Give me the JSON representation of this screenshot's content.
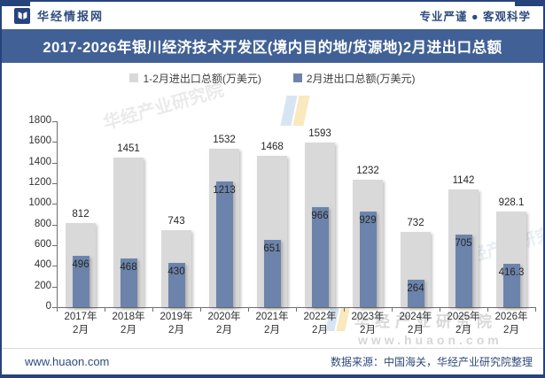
{
  "header": {
    "brand": "华经情报网",
    "tagline": "专业严谨 ● 客观科学"
  },
  "title": "2017-2026年银川经济技术开发区(境内目的地/货源地)2月进出口总额",
  "chart_data": {
    "type": "bar",
    "title": "2017-2026年银川经济技术开发区(境内目的地/货源地)2月进出口总额",
    "categories": [
      "2017年",
      "2018年",
      "2019年",
      "2020年",
      "2021年",
      "2022年",
      "2023年",
      "2024年",
      "2025年",
      "2026年"
    ],
    "category_sublabel": "2月",
    "series": [
      {
        "name": "1-2月进出口总额(万美元)",
        "color": "#d9d9d9",
        "values": [
          812,
          1451,
          743,
          1532,
          1468,
          1593,
          1232,
          732,
          1142,
          928.1
        ]
      },
      {
        "name": "2月进出口总额(万美元)",
        "color": "#6c84ab",
        "values": [
          496,
          468,
          430,
          1213,
          651,
          966,
          929,
          264,
          705,
          416.3
        ]
      }
    ],
    "ylim": [
      0,
      1800
    ],
    "ytick_step": 200,
    "grid": false,
    "legend_position": "top"
  },
  "watermark": {
    "brand_text": "华经产业研究院",
    "site_text": "www.huaon.com"
  },
  "footer": {
    "site": "www.huaon.com",
    "source": "数据来源：中国海关，华经产业研究院整理"
  },
  "colors": {
    "accent": "#2d4b7f",
    "title_bar": "#416196",
    "frame_border": "#26437c",
    "bar_primary": "#d9d9d9",
    "bar_secondary": "#6c84ab"
  }
}
